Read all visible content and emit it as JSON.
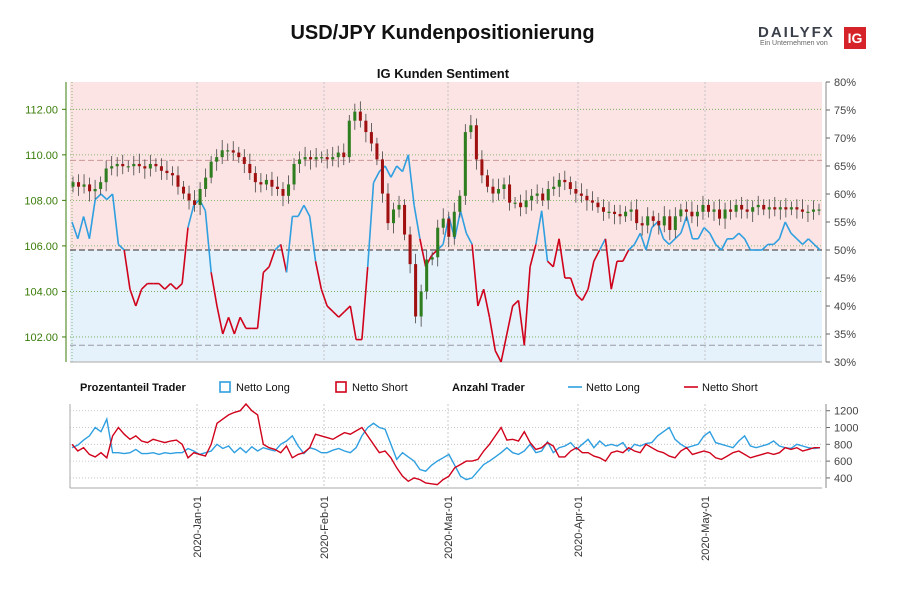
{
  "header": {
    "title": "USD/JPY Kundenpositionierung",
    "logo_text": "DAILYFX",
    "logo_sub": "Ein Unternehmen von",
    "logo_badge": "IG"
  },
  "colors": {
    "long": "#2f9fe0",
    "short": "#d0021b",
    "price_axis": "#3a7d0a",
    "upper_zone": "#fce4e4",
    "lower_zone": "#e5f2fb"
  },
  "chart_data": [
    {
      "type": "line",
      "title": "IG Kunden Sentiment",
      "left_axis": {
        "ticks": [
          "102.00",
          "104.00",
          "106.00",
          "108.00",
          "110.00",
          "112.00"
        ],
        "range": [
          100.9,
          113.2
        ]
      },
      "right_axis": {
        "ticks": [
          "30%",
          "35%",
          "40%",
          "45%",
          "50%",
          "55%",
          "60%",
          "65%",
          "70%",
          "75%",
          "80%"
        ],
        "range": [
          30,
          80
        ]
      },
      "x_ticks": [
        "2020-Jan-01",
        "2020-Feb-01",
        "2020-Mar-01",
        "2020-Apr-01",
        "2020-May-01"
      ],
      "reference_lines": {
        "dashed_pct_upper": 66,
        "dashed_pct_mid": 50,
        "dashed_pct_lower": 33
      },
      "series_pct": [
        {
          "name": "Netto Long",
          "values": [
            55,
            52,
            56,
            52,
            59,
            60,
            59,
            60,
            51,
            50,
            43,
            40,
            43,
            44,
            44,
            44,
            43,
            44,
            43,
            44,
            54,
            58,
            59,
            57,
            46,
            40,
            35,
            38,
            35,
            38,
            36,
            36,
            36,
            46,
            47,
            50,
            51,
            46,
            56,
            56,
            58,
            56,
            48,
            43,
            40,
            39,
            38,
            39,
            40,
            34,
            34,
            47,
            62,
            64,
            65,
            63,
            65,
            64,
            67,
            58,
            52,
            47,
            49,
            50,
            51,
            56,
            52,
            57,
            53,
            51,
            40,
            43,
            38,
            32,
            30,
            35,
            40,
            41,
            33,
            47,
            51,
            57,
            48,
            47,
            52,
            45,
            45,
            42,
            41,
            43,
            48,
            50,
            52,
            43,
            48,
            48,
            50,
            51,
            53,
            50,
            54,
            55,
            52,
            51,
            52,
            53,
            56,
            52,
            52,
            54,
            53,
            51,
            50,
            52,
            52,
            53,
            52,
            50,
            50,
            50,
            51,
            51,
            52,
            55,
            53,
            52,
            51,
            52,
            51,
            50
          ]
        },
        {
          "name": "Netto Short",
          "values": [
            45,
            48,
            44,
            48,
            41,
            40,
            41,
            40,
            49,
            50,
            57,
            60,
            57,
            56,
            56,
            56,
            57,
            56,
            57,
            56,
            46,
            42,
            41,
            43,
            54,
            60,
            65,
            62,
            65,
            62,
            64,
            64,
            64,
            54,
            53,
            50,
            49,
            54,
            44,
            44,
            42,
            44,
            52,
            57,
            60,
            61,
            62,
            61,
            60,
            66,
            66,
            53,
            38,
            36,
            35,
            37,
            35,
            36,
            33,
            42,
            48,
            53,
            51,
            50,
            49,
            44,
            48,
            43,
            47,
            49,
            60,
            57,
            62,
            68,
            70,
            65,
            60,
            59,
            67,
            53,
            49,
            43,
            52,
            53,
            48,
            55,
            55,
            58,
            59,
            57,
            52,
            50,
            48,
            57,
            52,
            52,
            50,
            49,
            47,
            50,
            46,
            45,
            48,
            49,
            48,
            47,
            44,
            48,
            48,
            46,
            47,
            49,
            50,
            48,
            48,
            47,
            48,
            50,
            50,
            50,
            49,
            49,
            48,
            45,
            47,
            48,
            49,
            48,
            49,
            50
          ]
        }
      ],
      "price_closes": [
        108.8,
        108.6,
        108.7,
        108.4,
        108.5,
        108.8,
        109.4,
        109.5,
        109.6,
        109.5,
        109.5,
        109.6,
        109.5,
        109.4,
        109.6,
        109.5,
        109.3,
        109.2,
        109.1,
        108.6,
        108.3,
        108.0,
        107.8,
        108.5,
        109.0,
        109.7,
        109.9,
        110.2,
        110.2,
        110.1,
        109.9,
        109.6,
        109.2,
        108.8,
        108.7,
        108.9,
        108.6,
        108.5,
        108.2,
        108.7,
        109.6,
        109.8,
        109.9,
        109.8,
        109.9,
        109.9,
        109.8,
        109.9,
        110.1,
        109.9,
        111.5,
        111.9,
        111.5,
        111.0,
        110.5,
        109.8,
        108.3,
        107.0,
        107.6,
        107.8,
        106.5,
        105.2,
        102.9,
        104.0,
        105.4,
        105.5,
        106.8,
        107.2,
        106.4,
        107.5,
        108.2,
        111.0,
        111.3,
        109.8,
        109.1,
        108.6,
        108.3,
        108.5,
        108.7,
        107.9,
        107.9,
        107.7,
        108.0,
        108.2,
        108.3,
        108.0,
        108.5,
        108.6,
        108.9,
        108.8,
        108.5,
        108.3,
        108.2,
        108.0,
        107.9,
        107.7,
        107.5,
        107.5,
        107.4,
        107.3,
        107.5,
        107.6,
        107.0,
        106.9,
        107.3,
        107.1,
        106.9,
        107.3,
        106.7,
        107.3,
        107.6,
        107.5,
        107.3,
        107.5,
        107.8,
        107.5,
        107.6,
        107.2,
        107.6,
        107.5,
        107.8,
        107.6,
        107.5,
        107.7,
        107.8,
        107.6,
        107.7,
        107.6,
        107.7,
        107.6,
        107.7,
        107.6,
        107.5,
        107.5,
        107.6,
        107.6
      ]
    },
    {
      "type": "line",
      "title": "",
      "legend": {
        "pct_label": "Prozentanteil Trader",
        "count_label": "Anzahl Trader",
        "long_label": "Netto Long",
        "short_label": "Netto Short"
      },
      "right_axis": {
        "ticks": [
          "400",
          "600",
          "800",
          "1000",
          "1200"
        ],
        "range": [
          280,
          1280
        ]
      },
      "series_count": [
        {
          "name": "Netto Long",
          "values": [
            760,
            790,
            850,
            900,
            1000,
            950,
            1100,
            700,
            700,
            690,
            700,
            740,
            690,
            690,
            700,
            680,
            700,
            690,
            700,
            700,
            750,
            720,
            680,
            700,
            720,
            800,
            750,
            780,
            700,
            760,
            700,
            770,
            720,
            760,
            740,
            720,
            800,
            840,
            900,
            780,
            690,
            760,
            740,
            700,
            700,
            730,
            750,
            720,
            700,
            760,
            900,
            1000,
            1050,
            1000,
            980,
            800,
            620,
            700,
            650,
            600,
            500,
            480,
            550,
            600,
            640,
            680,
            550,
            420,
            380,
            400,
            480,
            560,
            600,
            650,
            700,
            760,
            700,
            680,
            720,
            800,
            700,
            720,
            830,
            700,
            760,
            780,
            820,
            740,
            800,
            860,
            760,
            840,
            780,
            800,
            780,
            820,
            720,
            800,
            780,
            810,
            820,
            900,
            950,
            1000,
            860,
            800,
            760,
            780,
            800,
            900,
            950,
            820,
            800,
            780,
            760,
            840,
            900,
            780,
            760,
            780,
            800,
            840,
            780,
            760,
            750,
            800,
            780,
            760,
            750,
            760
          ]
        },
        {
          "name": "Netto Short",
          "values": [
            800,
            720,
            760,
            680,
            650,
            700,
            640,
            900,
            1000,
            920,
            860,
            900,
            840,
            820,
            860,
            840,
            820,
            840,
            850,
            800,
            640,
            700,
            680,
            660,
            800,
            1050,
            1100,
            1150,
            1180,
            1200,
            1280,
            1200,
            1150,
            800,
            760,
            740,
            700,
            780,
            640,
            680,
            700,
            760,
            920,
            900,
            880,
            860,
            900,
            940,
            920,
            960,
            1000,
            900,
            800,
            700,
            720,
            640,
            520,
            420,
            360,
            400,
            380,
            340,
            330,
            320,
            380,
            420,
            520,
            560,
            600,
            600,
            620,
            720,
            800,
            900,
            1000,
            850,
            860,
            840,
            950,
            820,
            740,
            760,
            820,
            780,
            650,
            650,
            720,
            760,
            700,
            700,
            660,
            640,
            600,
            700,
            720,
            700,
            760,
            720,
            700,
            800,
            760,
            720,
            700,
            660,
            640,
            720,
            760,
            680,
            700,
            720,
            700,
            640,
            620,
            660,
            700,
            720,
            680,
            640,
            660,
            680,
            700,
            680,
            700,
            760,
            740,
            760,
            720,
            740,
            760,
            760
          ]
        }
      ]
    }
  ]
}
